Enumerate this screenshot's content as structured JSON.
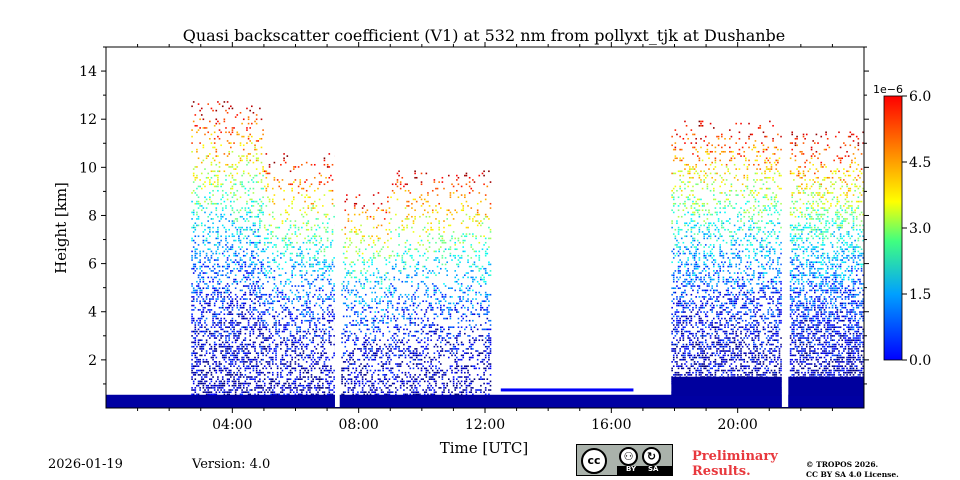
{
  "chart_data": {
    "type": "heatmap",
    "title": "Quasi backscatter coefficient (V1) at 532 nm from pollyxt_tjk at Dushanbe",
    "xlabel": "Time [UTC]",
    "ylabel": "Height [km]",
    "xlim": [
      0,
      24
    ],
    "ylim": [
      0,
      15
    ],
    "x_ticks": [
      {
        "value": 4,
        "label": "04:00"
      },
      {
        "value": 8,
        "label": "08:00"
      },
      {
        "value": 12,
        "label": "12:00"
      },
      {
        "value": 16,
        "label": "16:00"
      },
      {
        "value": 20,
        "label": "20:00"
      }
    ],
    "y_ticks": [
      {
        "value": 2,
        "label": "2"
      },
      {
        "value": 4,
        "label": "4"
      },
      {
        "value": 6,
        "label": "6"
      },
      {
        "value": 8,
        "label": "8"
      },
      {
        "value": 10,
        "label": "10"
      },
      {
        "value": 12,
        "label": "12"
      },
      {
        "value": 14,
        "label": "14"
      }
    ],
    "colorbar": {
      "colormap": "jet",
      "range": [
        0,
        6
      ],
      "scale_label": "1e−6",
      "ticks": [
        "0.0",
        "1.5",
        "3.0",
        "4.5",
        "6.0"
      ]
    },
    "observation_periods": [
      {
        "start": 2.7,
        "end": 5.0,
        "top_km": 12.8,
        "density": 0.55
      },
      {
        "start": 5.0,
        "end": 7.3,
        "top_km": 10.6,
        "density": 0.45
      },
      {
        "start": 7.3,
        "end": 9.0,
        "top_km": 9.0,
        "density": 0.42
      },
      {
        "start": 9.0,
        "end": 12.2,
        "top_km": 9.9,
        "density": 0.4
      },
      {
        "start": 17.9,
        "end": 21.4,
        "top_km": 12.0,
        "density": 0.55
      },
      {
        "start": 21.6,
        "end": 24.0,
        "top_km": 11.5,
        "density": 0.7
      }
    ],
    "data_gaps": [
      {
        "start": 7.25,
        "end": 7.4
      },
      {
        "start": 21.4,
        "end": 21.6
      }
    ],
    "boundary_layer_band": {
      "start": 0.0,
      "end": 24.0,
      "bottom_km": 0.0,
      "top_km": 0.55,
      "value": 0.2
    },
    "residual_layer": {
      "start": 12.5,
      "end": 16.7,
      "height_km": 0.75,
      "value": 0.5
    }
  },
  "footer": {
    "date": "2026-01-19",
    "version": "Version: 4.0",
    "preliminary_line1": "Preliminary",
    "preliminary_line2": "Results.",
    "copyright_line1": "© TROPOS 2026.",
    "copyright_line2": "CC BY SA 4.0 License.",
    "cc_by": "BY",
    "cc_sa": "SA"
  }
}
